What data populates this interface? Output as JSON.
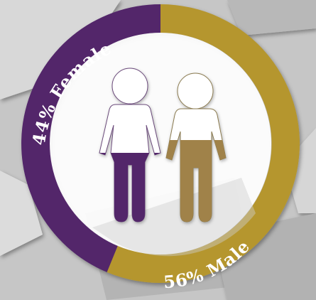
{
  "chart_data": {
    "type": "pie",
    "slices": [
      {
        "label": "Female",
        "value": 44,
        "color": "#52286a"
      },
      {
        "label": "Male",
        "value": 56,
        "color": "#b5962e"
      }
    ]
  },
  "labels": {
    "female": "44% Female",
    "male": "56% Male"
  },
  "figures": {
    "female_fill_fraction": 0.44,
    "male_fill_fraction": 0.56,
    "female_color": "#52286a",
    "male_color": "#a0824a"
  }
}
